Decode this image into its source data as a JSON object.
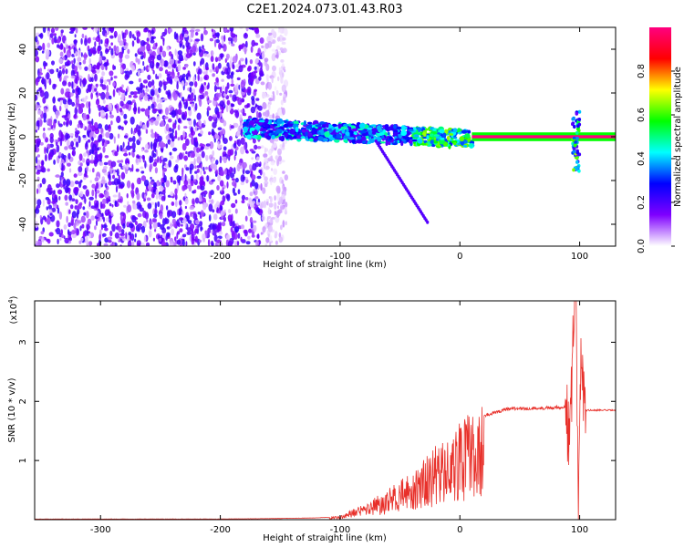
{
  "title": "C2E1.2024.073.01.43.R03",
  "chart_data": [
    {
      "type": "heatmap",
      "xlabel": "Height of straight line (km)",
      "ylabel": "Frequency (Hz)",
      "xlim": [
        -355,
        130
      ],
      "ylim": [
        -50,
        50
      ],
      "x_ticks": [
        -300,
        -200,
        -100,
        0,
        100
      ],
      "y_ticks": [
        -40,
        -20,
        0,
        20,
        40
      ],
      "colorbar": {
        "label": "Normalized spectral amplitude",
        "range": [
          0,
          1
        ],
        "ticks": [
          "0.0",
          "0.2",
          "0.4",
          "0.6",
          "0.8"
        ],
        "colors": [
          "#ffffff",
          "#7f00ff",
          "#0000ff",
          "#00ffff",
          "#00ff00",
          "#ffff00",
          "#ff0000",
          "#ff0080"
        ]
      },
      "features": [
        {
          "name": "noise",
          "x_range": [
            -355,
            -165
          ],
          "freq_range": [
            -50,
            50
          ],
          "amplitude": 0.15
        },
        {
          "name": "band",
          "x_range": [
            -180,
            10
          ],
          "center_freq": 0,
          "amplitude": 0.45
        },
        {
          "name": "carrier",
          "x_range": [
            10,
            130
          ],
          "center_freq": 0,
          "amplitude": 1.0
        },
        {
          "name": "spike",
          "x": 97,
          "freq_range": [
            -18,
            12
          ],
          "amplitude": 0.5
        }
      ]
    },
    {
      "type": "line",
      "xlabel": "Height of straight line (km)",
      "ylabel": "SNR (10 * v/v)",
      "y_multiplier": "(x10",
      "y_multiplier_exp": "4",
      "y_multiplier_close": ")",
      "xlim": [
        -355,
        130
      ],
      "ylim": [
        0,
        3.7
      ],
      "x_ticks": [
        -300,
        -200,
        -100,
        0,
        100
      ],
      "y_ticks": [
        1,
        2,
        3
      ],
      "line_color": "#e8302a",
      "series": [
        {
          "x": [
            -355,
            -200,
            -150,
            -120,
            -100,
            -80,
            -60,
            -40,
            -20,
            -10,
            0,
            20,
            40,
            60,
            80,
            88,
            92,
            95,
            97,
            99,
            101,
            104,
            130
          ],
          "values": [
            0.01,
            0.01,
            0.02,
            0.03,
            0.05,
            0.25,
            0.45,
            0.7,
            1.1,
            1.2,
            1.45,
            1.75,
            1.88,
            1.88,
            1.9,
            1.9,
            1.3,
            3.3,
            3.7,
            0.2,
            3.0,
            1.85,
            1.85
          ]
        }
      ]
    }
  ]
}
